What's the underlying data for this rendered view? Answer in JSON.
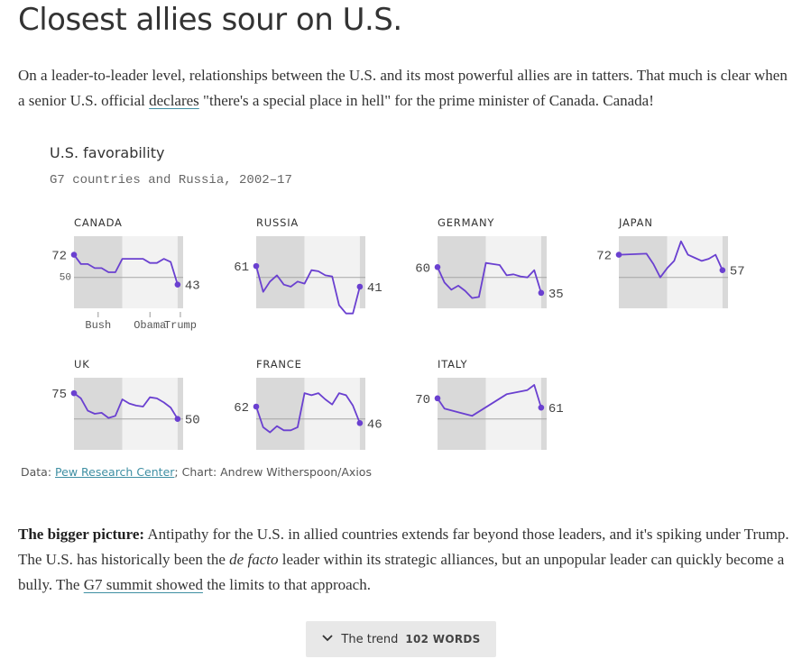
{
  "headline": "Closest allies sour on U.S.",
  "intro": {
    "before_link": "On a leader-to-leader level, relationships between the U.S. and its most powerful allies are in tatters. That much is clear when a senior U.S. official ",
    "link": "declares",
    "after_link": " \"there's a special place in hell\" for the prime minister of Canada. Canada!"
  },
  "chart": {
    "title": "U.S. favorability",
    "subtitle": "G7 countries and Russia, 2002–17",
    "source_prefix": "Data: ",
    "source_link": "Pew Research Center",
    "source_suffix": "; Chart: Andrew Witherspoon/Axios",
    "colors": {
      "line": "#6a40d0",
      "bush": "#d9d9d9",
      "obama": "#f2f2f2",
      "trump": "#d9d9d9",
      "reference": "#a6a6a6"
    }
  },
  "chart_data": {
    "type": "line",
    "title": "U.S. favorability",
    "subtitle": "G7 countries and Russia, 2002–17",
    "x_range": [
      2002,
      2017
    ],
    "ylim": [
      20,
      90
    ],
    "reference_value": 50,
    "reference_label": "50",
    "eras": [
      {
        "name": "Bush",
        "start": 2002,
        "end": 2009
      },
      {
        "name": "Obama",
        "start": 2009,
        "end": 2017
      },
      {
        "name": "Trump",
        "start": 2017,
        "end": 2017.8
      }
    ],
    "charts": [
      {
        "name": "CANADA",
        "start_label": "72",
        "end_label": "43",
        "x": [
          2002,
          2003,
          2004,
          2005,
          2006,
          2007,
          2008,
          2009,
          2010,
          2011,
          2012,
          2013,
          2014,
          2015,
          2016,
          2017
        ],
        "values": [
          72,
          63,
          63,
          59,
          59,
          55,
          55,
          68,
          68,
          68,
          68,
          64,
          64,
          68,
          65,
          43
        ]
      },
      {
        "name": "RUSSIA",
        "start_label": "61",
        "end_label": "41",
        "x": [
          2002,
          2003,
          2004,
          2005,
          2006,
          2007,
          2008,
          2009,
          2010,
          2011,
          2012,
          2013,
          2014,
          2015,
          2016,
          2017
        ],
        "values": [
          61,
          36,
          46,
          52,
          43,
          41,
          46,
          44,
          57,
          56,
          52,
          51,
          23,
          15,
          15,
          41
        ]
      },
      {
        "name": "GERMANY",
        "start_label": "60",
        "end_label": "35",
        "x": [
          2002,
          2003,
          2004,
          2005,
          2006,
          2007,
          2008,
          2009,
          2010,
          2011,
          2012,
          2013,
          2014,
          2015,
          2016,
          2017
        ],
        "values": [
          60,
          45,
          38,
          42,
          37,
          30,
          31,
          64,
          63,
          62,
          52,
          53,
          51,
          50,
          57,
          35
        ]
      },
      {
        "name": "JAPAN",
        "start_label": "72",
        "end_label": "57",
        "x": [
          2002,
          2006,
          2007,
          2008,
          2009,
          2010,
          2011,
          2012,
          2013,
          2014,
          2015,
          2016,
          2017
        ],
        "values": [
          72,
          73,
          63,
          50,
          59,
          66,
          85,
          72,
          69,
          66,
          68,
          72,
          57
        ]
      },
      {
        "name": "UK",
        "start_label": "75",
        "end_label": "50",
        "x": [
          2002,
          2003,
          2004,
          2005,
          2006,
          2007,
          2008,
          2009,
          2010,
          2011,
          2012,
          2013,
          2014,
          2015,
          2016,
          2017
        ],
        "values": [
          75,
          70,
          58,
          55,
          56,
          51,
          53,
          69,
          65,
          63,
          62,
          71,
          70,
          66,
          61,
          50
        ]
      },
      {
        "name": "FRANCE",
        "start_label": "62",
        "end_label": "46",
        "x": [
          2002,
          2003,
          2004,
          2005,
          2006,
          2007,
          2008,
          2009,
          2010,
          2011,
          2012,
          2013,
          2014,
          2015,
          2016,
          2017
        ],
        "values": [
          62,
          42,
          37,
          43,
          39,
          39,
          42,
          75,
          73,
          75,
          69,
          64,
          75,
          73,
          63,
          46
        ]
      },
      {
        "name": "ITALY",
        "start_label": "70",
        "end_label": "61",
        "x": [
          2002,
          2003,
          2007,
          2012,
          2015,
          2016,
          2017
        ],
        "values": [
          70,
          60,
          53,
          74,
          78,
          83,
          61
        ]
      }
    ],
    "era_labels": [
      "Bush",
      "Obama",
      "Trump"
    ]
  },
  "bigger_picture": {
    "lead": "The bigger picture:",
    "text1": " Antipathy for the U.S. in allied countries extends far beyond those leaders, and it's spiking under Trump. The U.S. has historically been the ",
    "italic": "de facto",
    "text2": " leader within its strategic alliances, but an unpopular leader can quickly become a bully. The ",
    "link": "G7 summit showed",
    "text3": " the limits to that approach."
  },
  "trend_button": {
    "icon": "chevron-down-icon",
    "label": "The trend",
    "count": "102 WORDS"
  }
}
